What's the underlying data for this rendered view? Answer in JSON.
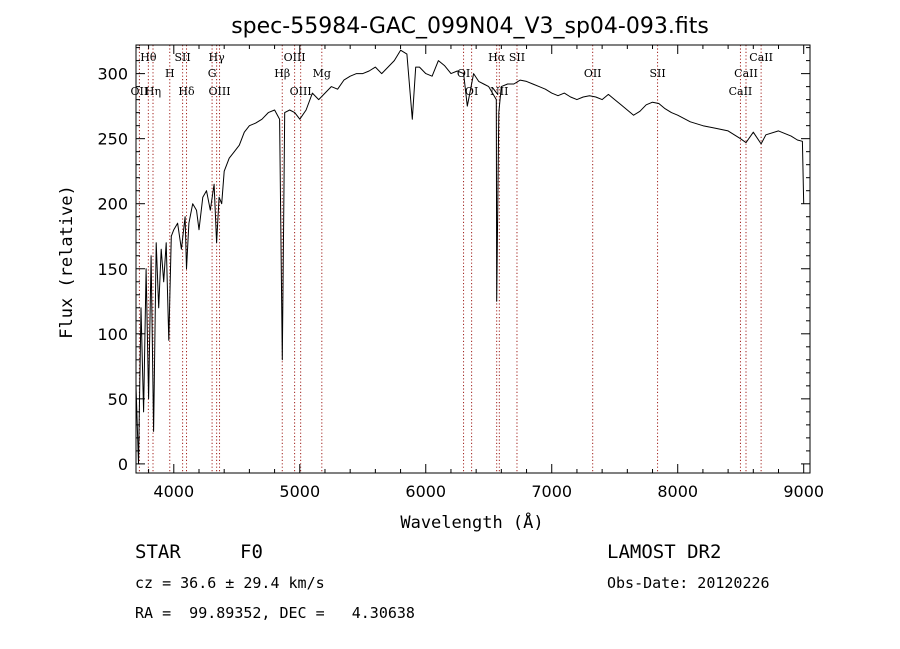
{
  "chart_data": {
    "type": "line",
    "title": "spec-55984-GAC_099N04_V3_sp04-093.fits",
    "xlabel": "Wavelength (Å)",
    "ylabel": "Flux (relative)",
    "xlim": [
      3700,
      9050
    ],
    "ylim": [
      -7,
      322
    ],
    "xticks": [
      4000,
      5000,
      6000,
      7000,
      8000,
      9000
    ],
    "yticks": [
      0,
      50,
      100,
      150,
      200,
      250,
      300
    ],
    "grid": false,
    "series": [
      {
        "x": [
          3700,
          3720,
          3740,
          3760,
          3780,
          3800,
          3820,
          3840,
          3860,
          3880,
          3900,
          3920,
          3940,
          3960,
          3980,
          4000,
          4030,
          4060,
          4090,
          4101,
          4120,
          4150,
          4180,
          4200,
          4230,
          4260,
          4290,
          4320,
          4340,
          4360,
          4380,
          4400,
          4440,
          4480,
          4520,
          4560,
          4600,
          4650,
          4700,
          4750,
          4800,
          4840,
          4861,
          4880,
          4920,
          4960,
          5000,
          5050,
          5100,
          5150,
          5200,
          5250,
          5300,
          5350,
          5400,
          5450,
          5500,
          5550,
          5600,
          5650,
          5700,
          5750,
          5800,
          5850,
          5893,
          5920,
          5950,
          6000,
          6050,
          6100,
          6150,
          6200,
          6250,
          6300,
          6330,
          6380,
          6420,
          6460,
          6500,
          6530,
          6560,
          6563,
          6580,
          6600,
          6650,
          6700,
          6750,
          6800,
          6850,
          6900,
          6950,
          7000,
          7050,
          7100,
          7150,
          7200,
          7250,
          7300,
          7350,
          7400,
          7450,
          7500,
          7550,
          7600,
          7650,
          7700,
          7750,
          7800,
          7850,
          7900,
          7950,
          8000,
          8100,
          8200,
          8300,
          8400,
          8498,
          8542,
          8600,
          8662,
          8700,
          8800,
          8900,
          8950,
          8990,
          9000
        ],
        "y": [
          60,
          0,
          120,
          40,
          150,
          50,
          160,
          25,
          170,
          120,
          165,
          140,
          170,
          95,
          175,
          180,
          185,
          165,
          190,
          150,
          185,
          200,
          195,
          180,
          205,
          210,
          195,
          215,
          170,
          205,
          200,
          225,
          235,
          240,
          245,
          255,
          260,
          262,
          265,
          270,
          272,
          265,
          80,
          270,
          272,
          270,
          265,
          272,
          285,
          280,
          285,
          290,
          288,
          295,
          298,
          300,
          300,
          302,
          305,
          300,
          305,
          310,
          318,
          315,
          265,
          305,
          305,
          300,
          298,
          310,
          306,
          300,
          302,
          300,
          275,
          300,
          294,
          292,
          290,
          285,
          280,
          125,
          270,
          290,
          292,
          292,
          295,
          294,
          292,
          290,
          288,
          285,
          283,
          285,
          282,
          280,
          282,
          283,
          282,
          280,
          284,
          280,
          276,
          272,
          268,
          271,
          276,
          278,
          277,
          273,
          270,
          268,
          263,
          260,
          258,
          256,
          250,
          247,
          255,
          246,
          253,
          256,
          252,
          249,
          248,
          200
        ]
      }
    ],
    "line_markers": [
      {
        "label": "Hθ",
        "x": 3798,
        "row": 0
      },
      {
        "label": "OII",
        "x": 3727,
        "row": 2
      },
      {
        "label": "Hη",
        "x": 3835,
        "row": 2
      },
      {
        "label": "H",
        "x": 3968,
        "row": 1
      },
      {
        "label": "SII",
        "x": 4070,
        "row": 0
      },
      {
        "label": "Hδ",
        "x": 4101,
        "row": 2
      },
      {
        "label": "Hγ",
        "x": 4340,
        "row": 0
      },
      {
        "label": "G",
        "x": 4304,
        "row": 1
      },
      {
        "label": "OIII",
        "x": 4363,
        "row": 2
      },
      {
        "label": "OIII",
        "x": 4959,
        "row": 0
      },
      {
        "label": "Hβ",
        "x": 4861,
        "row": 1
      },
      {
        "label": "Mg",
        "x": 5175,
        "row": 1
      },
      {
        "label": "OIII",
        "x": 5007,
        "row": 2
      },
      {
        "label": "OI",
        "x": 6300,
        "row": 1
      },
      {
        "label": "OI",
        "x": 6364,
        "row": 2
      },
      {
        "label": "Hα",
        "x": 6563,
        "row": 0
      },
      {
        "label": "SII",
        "x": 6724,
        "row": 0
      },
      {
        "label": "NII",
        "x": 6584,
        "row": 2
      },
      {
        "label": "OII",
        "x": 7325,
        "row": 1
      },
      {
        "label": "SII",
        "x": 7840,
        "row": 1
      },
      {
        "label": "CaII",
        "x": 8662,
        "row": 0
      },
      {
        "label": "CaII",
        "x": 8542,
        "row": 1
      },
      {
        "label": "CaII",
        "x": 8498,
        "row": 2
      }
    ]
  },
  "info": {
    "object_class": "STAR",
    "subclass": "F0",
    "survey": "LAMOST DR2",
    "cz": "cz = 36.6 ± 29.4 km/s",
    "obs_date": "Obs-Date: 20120226",
    "coords": "RA =  99.89352, DEC =   4.30638"
  }
}
